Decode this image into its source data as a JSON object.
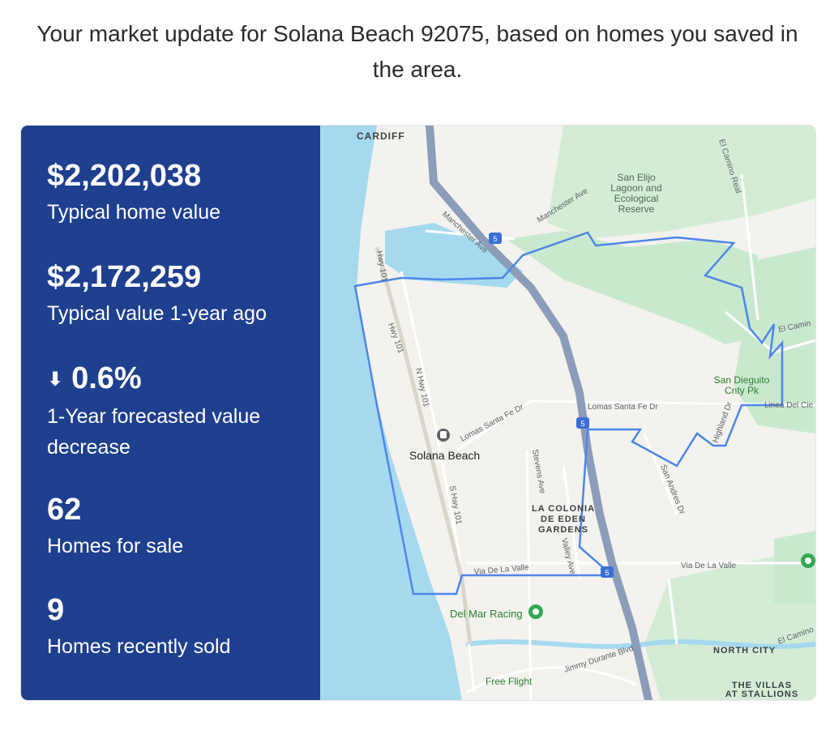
{
  "intro_text": "Your market update for Solana Beach 92075, based on homes you saved in the area.",
  "stats": [
    {
      "value": "$2,202,038",
      "label": "Typical home value"
    },
    {
      "value": "$2,172,259",
      "label": "Typical value 1-year ago"
    },
    {
      "value": "0.6%",
      "label": "1-Year forecasted value decrease",
      "direction": "down"
    },
    {
      "value": "62",
      "label": "Homes for sale"
    },
    {
      "value": "9",
      "label": "Homes recently sold"
    }
  ],
  "colors": {
    "panel": "#1f3f8f",
    "ocean": "#a5d9ee",
    "park": "#c9e9cf",
    "freeway": "#8c9dba",
    "boundary": "#4f86e8"
  },
  "map": {
    "place_labels": {
      "cardiff": "CARDIFF",
      "san_elijo": "San Elijo",
      "lagoon_and": "Lagoon and",
      "ecological": "Ecological",
      "reserve": "Reserve",
      "solana_beach": "Solana Beach",
      "la_colonia_1": "LA COLONIA",
      "la_colonia_2": "DE EDEN",
      "la_colonia_3": "GARDENS",
      "san_dieguito_1": "San Dieguito",
      "san_dieguito_2": "Cnty Pk",
      "del_mar_racing": "Del Mar Racing",
      "north_city": "NORTH CITY",
      "the_villas_1": "THE VILLAS",
      "the_villas_2": "AT STALLIONS",
      "free_flight": "Free Flight"
    },
    "road_labels": {
      "manchester_ave_1": "Manchester Ave",
      "manchester_ave_2": "Manchester Ave",
      "hwy101_a": "Hwy 101",
      "hwy101_b": "Hwy 101",
      "n_hwy101": "N Hwy 101",
      "s_hwy101": "S Hwy 101",
      "lomas_santa_fe_1": "Lomas Santa Fe Dr",
      "lomas_santa_fe_2": "Lomas Santa Fe Dr",
      "stevens_ave": "Stevens Ave",
      "valley_ave": "Valley Ave",
      "san_andres_dr": "San Andres Dr",
      "highland_dr": "Highland Dr",
      "via_de_la_valle_1": "Via De La Valle",
      "via_de_la_valle_2": "Via De La Valle",
      "jimmy_durante": "Jimmy Durante Blvd",
      "el_camino_real_1": "El Camino Real",
      "el_camino_2": "El Camin",
      "el_camino_3": "El Camino",
      "linea_del_cie": "Linea Del Cie",
      "interstate": "5"
    }
  }
}
